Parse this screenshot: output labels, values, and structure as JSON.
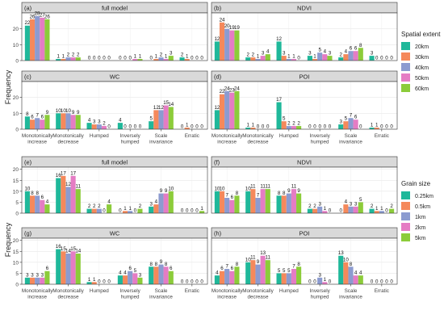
{
  "figure": {
    "y_label": "Frequency",
    "categories": [
      "Monotonically increase",
      "Monotonically decrease",
      "Humped",
      "Inversely humped",
      "Scale invariance",
      "Erratic"
    ],
    "category_lines": [
      [
        "Monotonically",
        "increase"
      ],
      [
        "Monotonically",
        "decrease"
      ],
      [
        "Humped"
      ],
      [
        "Inversely",
        "humped"
      ],
      [
        "Scale",
        "invariance"
      ],
      [
        "Erratic"
      ]
    ]
  },
  "chart_data": [
    {
      "type": "bar",
      "panel": "(a)",
      "title": "full model",
      "group": "top",
      "ylim": [
        0,
        30
      ],
      "yticks": [
        0,
        10,
        20
      ],
      "series_values": [
        [
          22,
          1,
          0,
          0,
          0,
          2
        ],
        [
          26,
          1,
          0,
          0,
          1,
          1
        ],
        [
          28,
          2,
          0,
          0,
          2,
          0
        ],
        [
          27,
          2,
          0,
          1,
          1,
          0
        ],
        [
          26,
          2,
          0,
          1,
          3,
          0
        ]
      ]
    },
    {
      "type": "bar",
      "panel": "(b)",
      "title": "NDVI",
      "group": "top",
      "ylim": [
        0,
        30
      ],
      "yticks": [
        0,
        10,
        20
      ],
      "series_values": [
        [
          12,
          2,
          12,
          3,
          2,
          3
        ],
        [
          24,
          2,
          3,
          1,
          4,
          0
        ],
        [
          20,
          1,
          1,
          5,
          6,
          0
        ],
        [
          19,
          3,
          1,
          4,
          6,
          0
        ],
        [
          19,
          4,
          0,
          3,
          8,
          0
        ]
      ]
    },
    {
      "type": "bar",
      "panel": "(c)",
      "title": "WC",
      "group": "top",
      "ylim": [
        0,
        30
      ],
      "yticks": [
        0,
        10,
        20
      ],
      "series_values": [
        [
          8,
          10,
          4,
          4,
          5,
          0
        ],
        [
          6,
          10,
          3,
          0,
          12,
          1
        ],
        [
          7,
          10,
          3,
          0,
          12,
          0
        ],
        [
          6,
          9,
          2,
          0,
          15,
          0
        ],
        [
          9,
          9,
          0,
          0,
          14,
          0
        ]
      ]
    },
    {
      "type": "bar",
      "panel": "(d)",
      "title": "POI",
      "group": "top",
      "ylim": [
        0,
        30
      ],
      "yticks": [
        0,
        10,
        20
      ],
      "series_values": [
        [
          12,
          1,
          17,
          0,
          3,
          1
        ],
        [
          22,
          1,
          5,
          0,
          5,
          1
        ],
        [
          24,
          0,
          2,
          0,
          7,
          0
        ],
        [
          23,
          0,
          2,
          0,
          6,
          0
        ],
        [
          24,
          0,
          2,
          0,
          0,
          0
        ]
      ]
    },
    {
      "type": "bar",
      "panel": "(e)",
      "title": "full model",
      "group": "bottom",
      "ylim": [
        0,
        21
      ],
      "yticks": [
        0,
        5,
        10,
        15,
        20
      ],
      "series_values": [
        [
          10,
          16,
          2,
          0,
          3,
          0
        ],
        [
          8,
          17,
          2,
          1,
          4,
          0
        ],
        [
          8,
          12,
          2,
          1,
          9,
          0
        ],
        [
          6,
          17,
          0,
          0,
          9,
          0
        ],
        [
          4,
          11,
          4,
          2,
          10,
          1
        ]
      ]
    },
    {
      "type": "bar",
      "panel": "(f)",
      "title": "NDVI",
      "group": "bottom",
      "ylim": [
        0,
        21
      ],
      "yticks": [
        0,
        5,
        10,
        15,
        20
      ],
      "series_values": [
        [
          10,
          10,
          8,
          2,
          0,
          2
        ],
        [
          10,
          11,
          8,
          2,
          4,
          1
        ],
        [
          7,
          7,
          9,
          3,
          3,
          1
        ],
        [
          6,
          11,
          11,
          1,
          3,
          0
        ],
        [
          8,
          11,
          9,
          0,
          5,
          2
        ]
      ]
    },
    {
      "type": "bar",
      "panel": "(g)",
      "title": "WC",
      "group": "bottom",
      "ylim": [
        0,
        21
      ],
      "yticks": [
        0,
        5,
        10,
        15,
        20
      ],
      "series_values": [
        [
          3,
          16,
          1,
          4,
          8,
          0
        ],
        [
          3,
          15,
          1,
          4,
          8,
          0
        ],
        [
          3,
          14,
          0,
          6,
          9,
          0
        ],
        [
          3,
          15,
          0,
          5,
          8,
          0
        ],
        [
          6,
          14,
          0,
          3,
          6,
          0
        ]
      ]
    },
    {
      "type": "bar",
      "panel": "(h)",
      "title": "POI",
      "group": "bottom",
      "ylim": [
        0,
        21
      ],
      "yticks": [
        0,
        5,
        10,
        15,
        20
      ],
      "series_values": [
        [
          4,
          10,
          5,
          0,
          13,
          0
        ],
        [
          6,
          11,
          5,
          0,
          10,
          0
        ],
        [
          7,
          9,
          5,
          3,
          8,
          0
        ],
        [
          6,
          13,
          7,
          1,
          4,
          0
        ],
        [
          8,
          11,
          8,
          0,
          4,
          0
        ]
      ]
    }
  ],
  "legends": [
    {
      "group": "top",
      "title": "Spatial extent",
      "labels": [
        "20km",
        "30km",
        "40km",
        "50km",
        "60km"
      ]
    },
    {
      "group": "bottom",
      "title": "Grain size",
      "labels": [
        "0.25km",
        "0.5km",
        "1km",
        "2km",
        "5km"
      ]
    }
  ],
  "colors": [
    "#1fb89a",
    "#f5895b",
    "#8c9bd0",
    "#e57cc4",
    "#8ccc3a"
  ]
}
